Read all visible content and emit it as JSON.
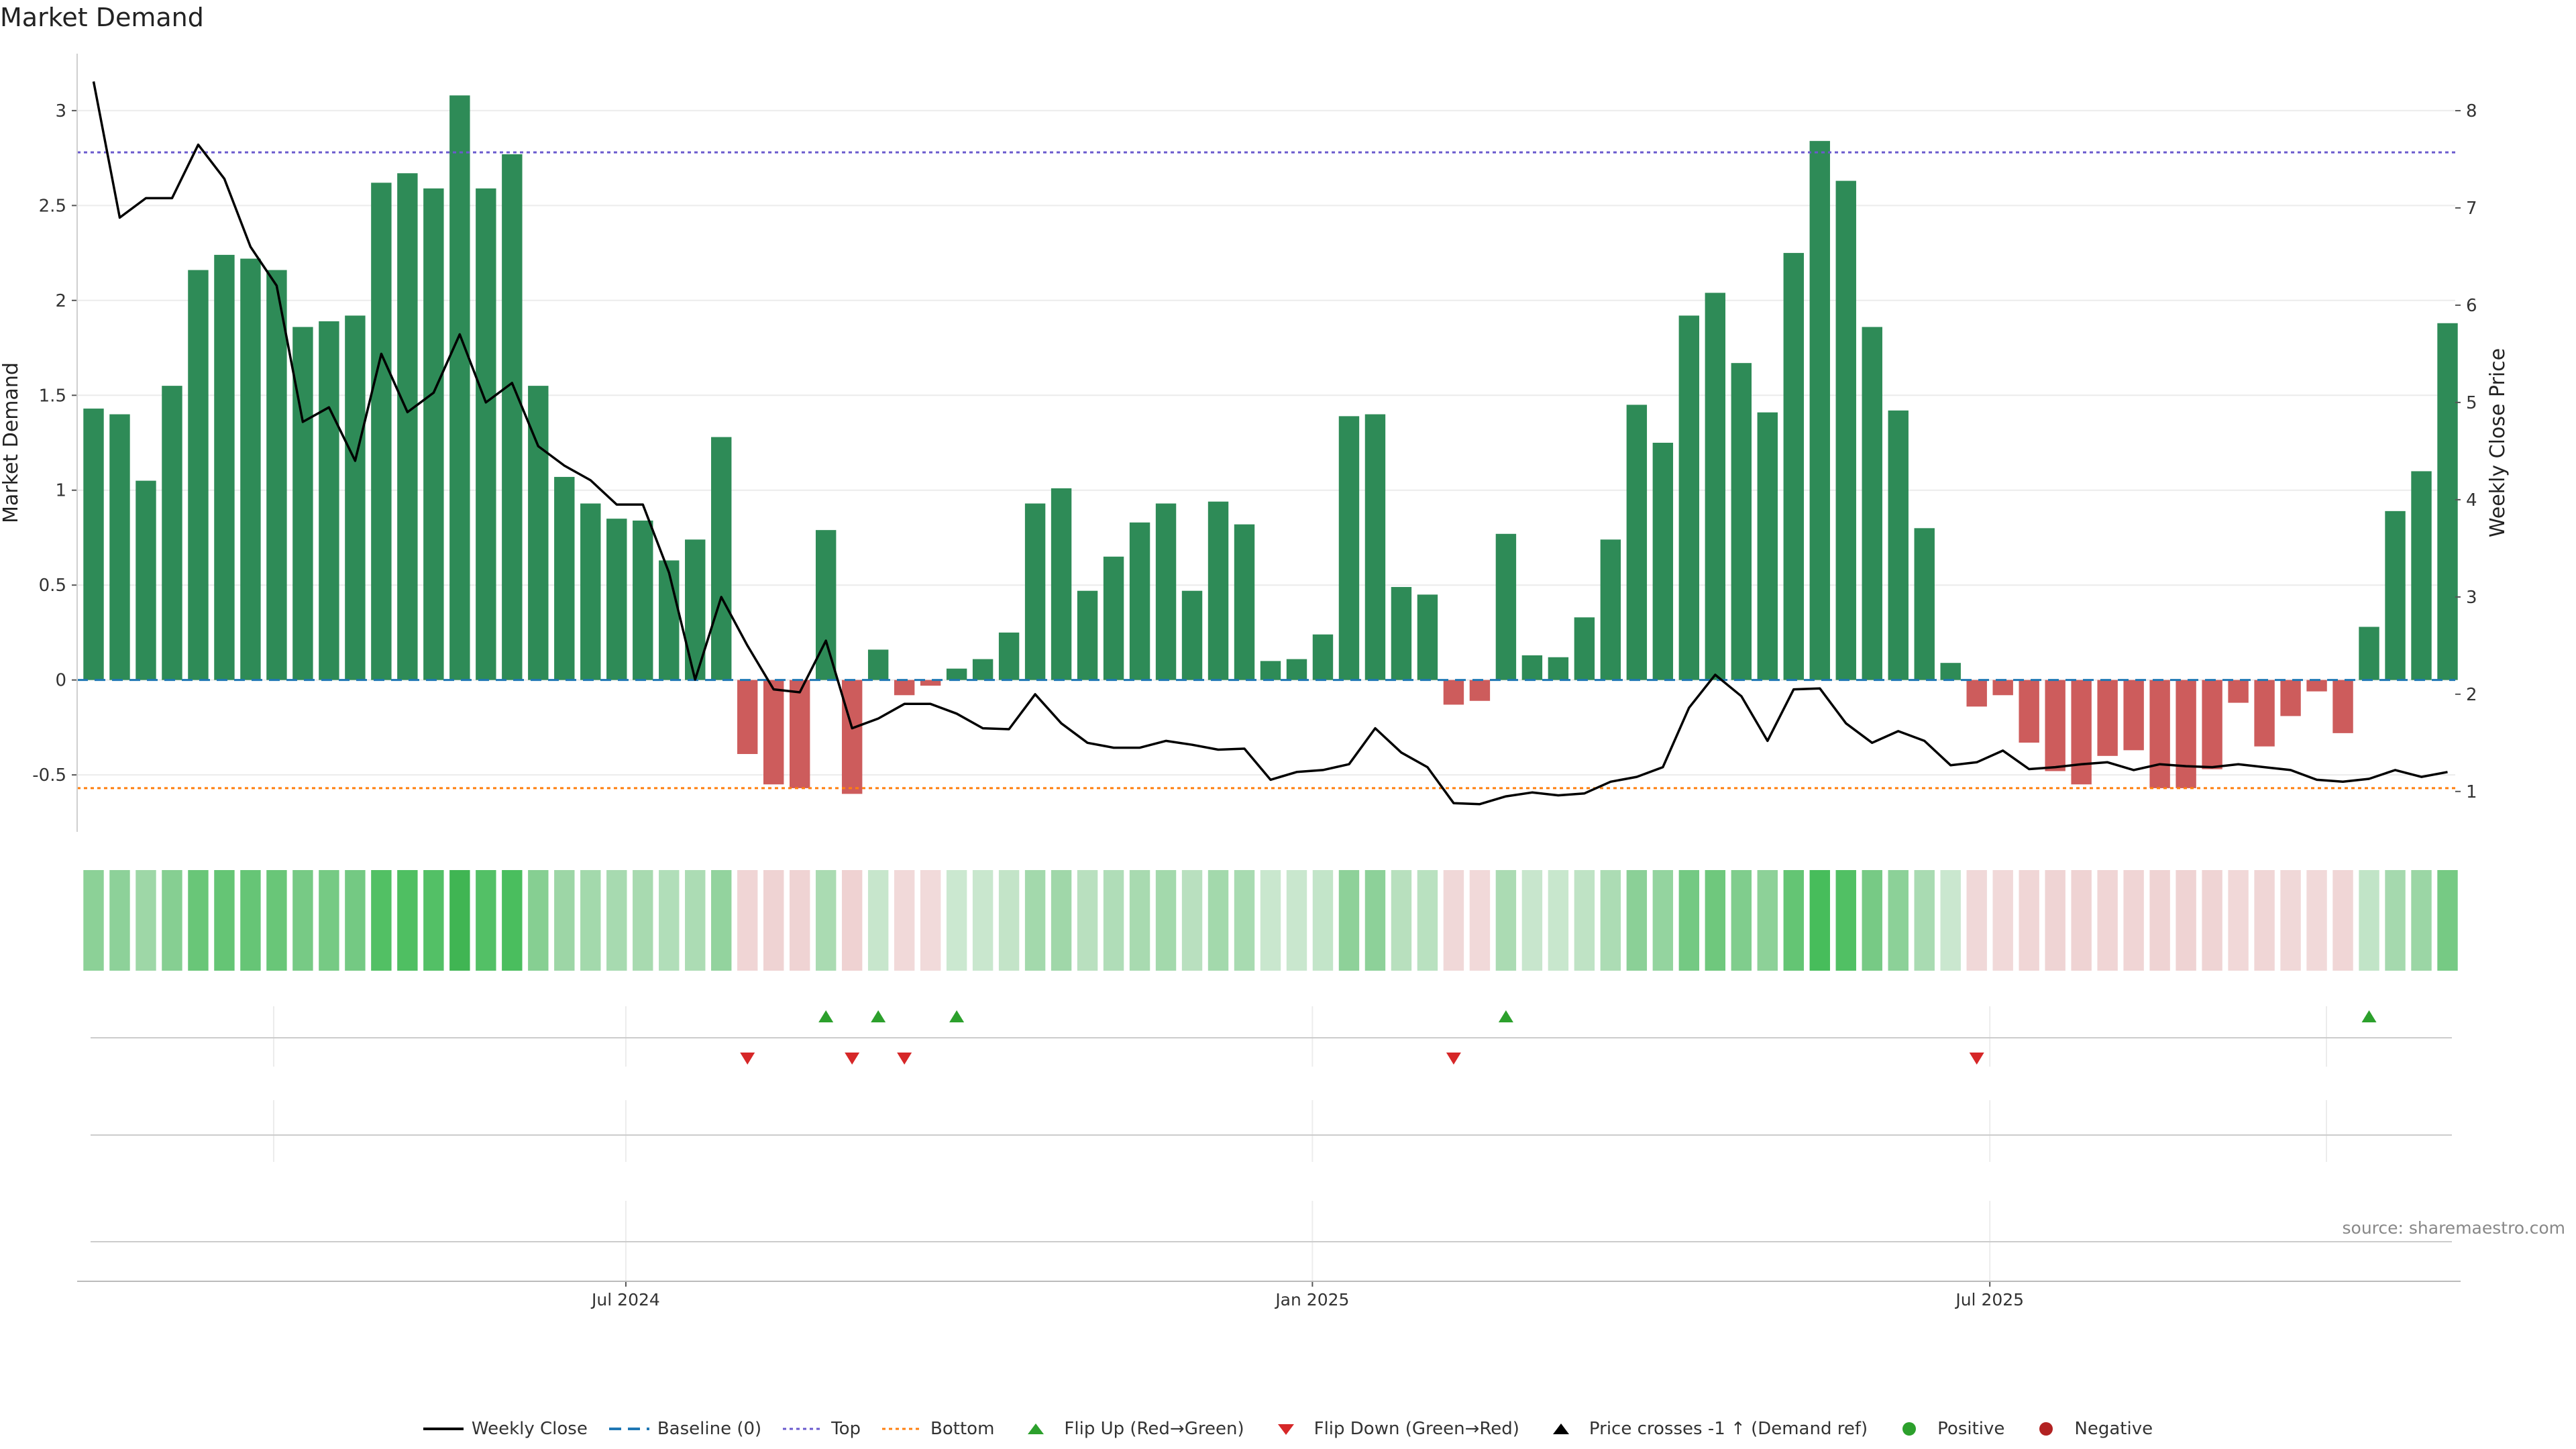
{
  "title": "Market Demand",
  "source": "source: sharemaestro.com",
  "colors": {
    "positive_bar": "#2e8b57",
    "negative_bar": "#cd5c5c",
    "price_line": "#000000",
    "baseline": "#1f77b4",
    "top": "#6a5acd",
    "bottom": "#ff7f0e",
    "flip_up": "#2ca02c",
    "flip_down": "#d62728",
    "positive_dot": "#2ca02c",
    "negative_dot": "#b22222"
  },
  "legend": [
    {
      "label": "Weekly Close",
      "icon": "solid-line-icon",
      "color": "#000000"
    },
    {
      "label": "Baseline (0)",
      "icon": "dashed-line-icon",
      "color": "#1f77b4"
    },
    {
      "label": "Top",
      "icon": "dotted-line-icon",
      "color": "#6a5acd"
    },
    {
      "label": "Bottom",
      "icon": "dotted-line-icon",
      "color": "#ff7f0e"
    },
    {
      "label": "Flip Up (Red→Green)",
      "icon": "triangle-up-icon",
      "color": "#2ca02c"
    },
    {
      "label": "Flip Down (Green→Red)",
      "icon": "triangle-down-icon",
      "color": "#d62728"
    },
    {
      "label": "Price crosses -1 ↑ (Demand ref)",
      "icon": "triangle-up-icon",
      "color": "#000000"
    },
    {
      "label": "Positive",
      "icon": "circle-icon",
      "color": "#2ca02c"
    },
    {
      "label": "Negative",
      "icon": "circle-icon",
      "color": "#b22222"
    }
  ],
  "chart_data": {
    "type": "bar",
    "title": "Market Demand",
    "ylabel": "Market Demand",
    "y2label": "Weekly Close Price",
    "ylim": [
      -0.8,
      3.3
    ],
    "y2lim": [
      0.585,
      8.586
    ],
    "yticks": [
      -0.5,
      0,
      0.5,
      1,
      1.5,
      2,
      2.5,
      3
    ],
    "yticklabels": [
      "-0.5",
      "0",
      "0.5",
      "1",
      "1.5",
      "2",
      "2.5",
      "3"
    ],
    "y2ticks": [
      1,
      2,
      3,
      4,
      5,
      6,
      7,
      8
    ],
    "y2ticklabels": [
      "1",
      "2",
      "3",
      "4",
      "5",
      "6",
      "7",
      "8"
    ],
    "x_tick_labels": [
      "Jul 2024",
      "Jan 2025",
      "Jul 2025"
    ],
    "x_tick_week_index": [
      20.35,
      46.6,
      72.5
    ],
    "reference_lines": {
      "baseline": 0,
      "top": 2.78,
      "bottom": -0.57
    },
    "demand": [
      1.43,
      1.4,
      1.05,
      1.55,
      2.16,
      2.24,
      2.22,
      2.16,
      1.86,
      1.89,
      1.92,
      2.62,
      2.67,
      2.59,
      3.08,
      2.59,
      2.77,
      1.55,
      1.07,
      0.93,
      0.85,
      0.84,
      0.63,
      0.74,
      1.28,
      -0.39,
      -0.55,
      -0.57,
      0.79,
      -0.6,
      0.16,
      -0.08,
      -0.03,
      0.06,
      0.11,
      0.25,
      0.93,
      1.01,
      0.47,
      0.65,
      0.83,
      0.93,
      0.47,
      0.94,
      0.82,
      0.1,
      0.11,
      0.24,
      1.39,
      1.4,
      0.49,
      0.45,
      -0.13,
      -0.11,
      0.77,
      0.13,
      0.12,
      0.33,
      0.74,
      1.45,
      1.25,
      1.92,
      2.04,
      1.67,
      1.41,
      2.25,
      2.84,
      2.63,
      1.86,
      1.42,
      0.8,
      0.09,
      -0.14,
      -0.08,
      -0.33,
      -0.48,
      -0.55,
      -0.4,
      -0.37,
      -0.57,
      -0.57,
      -0.47,
      -0.12,
      -0.35,
      -0.19,
      -0.06,
      -0.28,
      0.28,
      0.89,
      1.1,
      1.88
    ],
    "weekly_close": [
      8.3,
      6.9,
      7.1,
      7.1,
      7.65,
      7.3,
      6.6,
      6.2,
      4.8,
      4.95,
      4.4,
      5.5,
      4.9,
      5.1,
      5.7,
      5.0,
      5.2,
      4.55,
      4.35,
      4.2,
      3.95,
      3.95,
      3.25,
      2.15,
      3.0,
      2.5,
      2.05,
      2.02,
      2.55,
      1.65,
      1.75,
      1.9,
      1.9,
      1.8,
      1.65,
      1.64,
      2.0,
      1.7,
      1.5,
      1.45,
      1.45,
      1.52,
      1.48,
      1.43,
      1.44,
      1.12,
      1.2,
      1.22,
      1.28,
      1.65,
      1.4,
      1.25,
      0.88,
      0.87,
      0.95,
      0.99,
      0.96,
      0.98,
      1.1,
      1.15,
      1.25,
      1.86,
      2.2,
      1.98,
      1.52,
      2.05,
      2.06,
      1.7,
      1.5,
      1.62,
      1.52,
      1.27,
      1.3,
      1.42,
      1.23,
      1.25,
      1.28,
      1.3,
      1.22,
      1.28,
      1.26,
      1.25,
      1.28,
      1.25,
      1.22,
      1.12,
      1.1,
      1.13,
      1.22,
      1.15,
      1.2
    ],
    "flip_up_weeks": [
      28,
      30,
      33,
      54,
      87
    ],
    "flip_down_weeks": [
      25,
      29,
      31,
      52,
      72
    ]
  }
}
